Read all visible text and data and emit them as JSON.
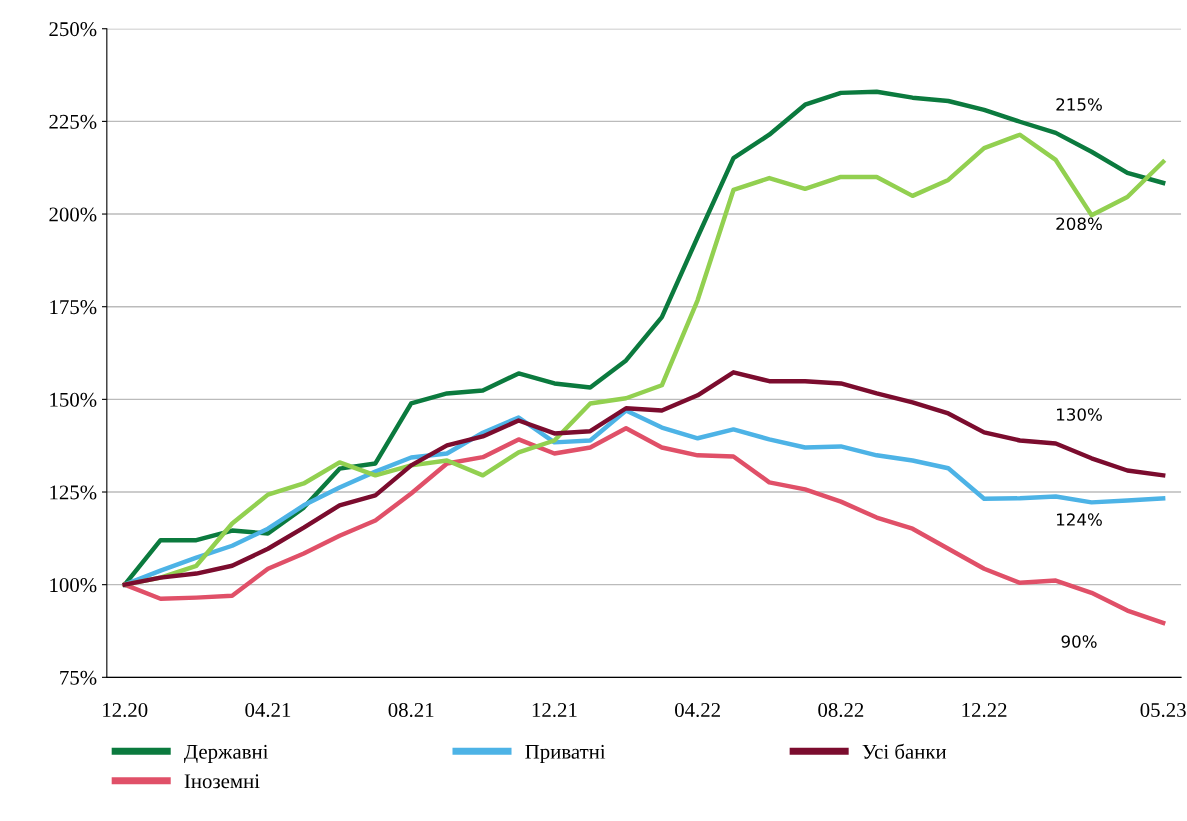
{
  "chart_data": {
    "type": "line",
    "categories": [
      "12.20",
      null,
      null,
      null,
      "04.21",
      null,
      null,
      null,
      "08.21",
      null,
      null,
      null,
      "12.21",
      null,
      null,
      null,
      "04.22",
      null,
      null,
      null,
      "08.22",
      null,
      null,
      null,
      "12.22",
      null,
      null,
      null,
      null,
      "05.23"
    ],
    "series": [
      {
        "name": "Державні",
        "color": "#0b7a3e",
        "values": [
          100,
          112,
          112,
          114.6,
          113.8,
          120.8,
          131.3,
          132.7,
          148.9,
          151.6,
          152.4,
          157.0,
          154.3,
          153.2,
          160.5,
          172.2,
          193.8,
          215.1,
          221.4,
          229.5,
          232.7,
          233.0,
          231.4,
          230.5,
          228.1,
          224.9,
          221.9,
          216.8,
          211.1,
          208.4
        ]
      },
      {
        "name": "Іноземні",
        "color": "#e05068",
        "values": [
          100,
          96.2,
          96.5,
          97.0,
          104.3,
          108.4,
          113.2,
          117.3,
          124.6,
          132.7,
          134.4,
          139.2,
          135.4,
          137.0,
          142.2,
          137.0,
          134.9,
          134.6,
          127.6,
          125.7,
          122.4,
          118.1,
          115.1,
          109.7,
          104.3,
          100.5,
          101.1,
          97.8,
          93.0,
          89.7
        ]
      },
      {
        "name": "Приватні",
        "color": "#4db3e6",
        "values": [
          100,
          103.8,
          107.3,
          110.5,
          115.1,
          121.4,
          126.2,
          130.5,
          134.3,
          135.4,
          141.0,
          145.1,
          138.4,
          138.9,
          147.0,
          142.4,
          139.5,
          141.9,
          139.2,
          137.0,
          137.3,
          134.9,
          133.5,
          131.4,
          123.2,
          123.3,
          123.8,
          122.2,
          122.7,
          123.3
        ]
      },
      {
        "color": "#92d050",
        "values": [
          100,
          101.9,
          105.1,
          116.5,
          124.3,
          127.3,
          133.0,
          129.5,
          132.2,
          133.5,
          129.5,
          135.7,
          138.9,
          148.9,
          150.3,
          153.8,
          176.8,
          206.5,
          209.7,
          206.8,
          210.0,
          210.0,
          204.9,
          209.2,
          217.8,
          221.4,
          214.6,
          199.7,
          204.6,
          214.1
        ]
      },
      {
        "name": "Усі банки",
        "color": "#7b0c2e",
        "values": [
          100,
          101.9,
          103.0,
          105.1,
          109.7,
          115.4,
          121.4,
          124.1,
          132.2,
          137.6,
          140.0,
          144.3,
          140.8,
          141.4,
          147.6,
          147.0,
          151.1,
          157.3,
          154.9,
          154.9,
          154.3,
          151.6,
          149.2,
          146.2,
          141.1,
          138.9,
          138.1,
          134.1,
          130.8,
          129.5
        ]
      }
    ],
    "ylim": [
      75,
      250
    ],
    "yticks": [
      {
        "value": 75,
        "label": "75%"
      },
      {
        "value": 100,
        "label": "100%"
      },
      {
        "value": 125,
        "label": "125%"
      },
      {
        "value": 150,
        "label": "150%"
      },
      {
        "value": 175,
        "label": "175%"
      },
      {
        "value": 200,
        "label": "200%"
      },
      {
        "value": 225,
        "label": "225%"
      },
      {
        "value": 250,
        "label": "250%"
      }
    ],
    "annotations": [
      "215%",
      "208%",
      "130%",
      "124%",
      "90%"
    ],
    "grid": "y",
    "legend": "bottom",
    "marker": "none",
    "line_style": "solid"
  }
}
